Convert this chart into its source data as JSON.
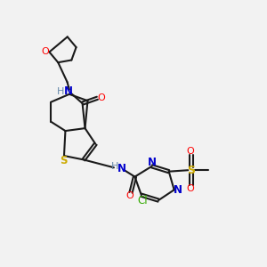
{
  "background_color": "#f2f2f2",
  "bond_color": "#1a1a1a",
  "atom_colors": {
    "O": "#ff0000",
    "N": "#0000cc",
    "S": "#ccaa00",
    "Cl": "#33aa00",
    "H": "#6688aa",
    "C": "#1a1a1a"
  },
  "figsize": [
    3.0,
    3.0
  ],
  "dpi": 100
}
